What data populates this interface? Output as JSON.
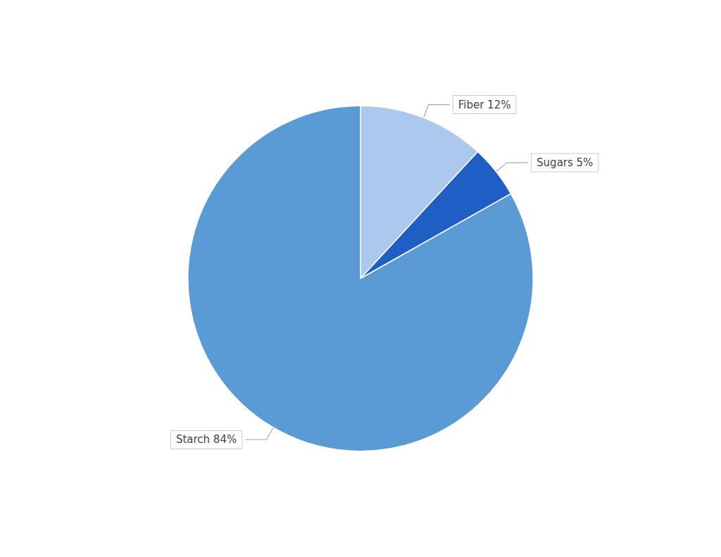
{
  "chart_data": {
    "type": "pie",
    "categories": [
      "Fiber",
      "Sugars",
      "Starch"
    ],
    "values": [
      12,
      5,
      84
    ],
    "colors": [
      "#adc8ee",
      "#1f5ec4",
      "#5b9bd5"
    ],
    "data_labels": true,
    "value_labels": [
      "Fiber 12%",
      "Sugars 5%",
      "Starch 84%"
    ]
  }
}
